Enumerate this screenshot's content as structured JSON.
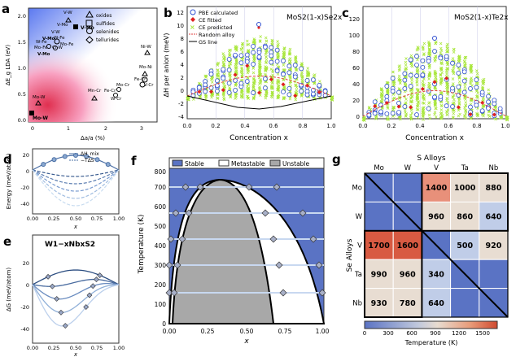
{
  "panel_letters": [
    "a",
    "b",
    "c",
    "d",
    "e",
    "f",
    "g"
  ],
  "a": {
    "xlabel": "Δa/a (%)",
    "ylabel": "ΔE_g LDA (eV)",
    "xticks": [
      "0",
      "1",
      "2",
      "3"
    ],
    "yticks": [
      "0.0",
      "0.5",
      "1.0",
      "1.5",
      "2.0"
    ],
    "legend": [
      "oxides",
      "sulfides",
      "selenides",
      "tellurides"
    ],
    "highlight_text": "Mo-W",
    "labels": [
      "V-W",
      "V-Mo",
      "V-W",
      "W-Fe",
      "V-Mo",
      "Mo-Fe",
      "Mo-Fe",
      "Cr-W",
      "V-Mo",
      "W-Fe",
      "Ni-W",
      "Mo-Ni",
      "V-Cr",
      "Fe-Cr",
      "Mo-Cr",
      "Mn-Cr",
      "Fe-Cr",
      "W-Cr",
      "Mo-W",
      "Mo-W"
    ]
  },
  "b": {
    "title": "MoS2(1-x)Se2x",
    "xlabel": "Concentration x",
    "ylabel": "ΔH per anion (meV)",
    "xticks": [
      "0.0",
      "0.2",
      "0.4",
      "0.6",
      "0.8",
      "1.0"
    ],
    "yticks": [
      "-4",
      "-2",
      "0",
      "2",
      "4",
      "6",
      "8",
      "10",
      "12",
      "14"
    ],
    "legend": [
      "PBE calculated",
      "CE fitted",
      "CE predicted",
      "Random alloy",
      "GS line"
    ]
  },
  "c": {
    "title": "MoS2(1-x)Te2x",
    "xticks": [
      "0.0",
      "0.2",
      "0.4",
      "0.6",
      "0.8",
      "1.0"
    ],
    "yticks": [
      "0",
      "20",
      "40",
      "60",
      "80",
      "100",
      "120"
    ]
  },
  "d": {
    "ylabel": "Energy (meV/atom)",
    "xlabel": "x",
    "xticks": [
      "0.00",
      "0.25",
      "0.50",
      "0.75",
      "1.00"
    ],
    "yticks": [
      "-40",
      "-20",
      "0",
      "20"
    ],
    "legend": [
      "ΔH_mix",
      "−TΔS"
    ]
  },
  "e": {
    "title": "W1−xNbxS2",
    "ylabel": "ΔG (meV/atom)",
    "xlabel": "x",
    "xticks": [
      "0.00",
      "0.25",
      "0.50",
      "0.75",
      "1.00"
    ],
    "yticks": [
      "-40",
      "-20",
      "0",
      "20"
    ]
  },
  "f": {
    "legend": [
      "Stable",
      "Metastable",
      "Unstable"
    ],
    "xlabel": "x",
    "ylabel": "Temperature (K)",
    "xticks": [
      "0.00",
      "0.25",
      "0.50",
      "0.75",
      "1.00"
    ],
    "yticks": [
      "0",
      "100",
      "200",
      "300",
      "400",
      "500",
      "600",
      "700",
      "800"
    ]
  },
  "g": {
    "top_label": "S Alloys",
    "side_label": "Se Alloys",
    "elements": [
      "Mo",
      "W",
      "V",
      "Ta",
      "Nb"
    ],
    "matrix": [
      [
        "",
        "",
        "1400",
        "1000",
        "880"
      ],
      [
        "",
        "",
        "960",
        "860",
        "640"
      ],
      [
        "1700",
        "1600",
        "",
        "500",
        "920"
      ],
      [
        "990",
        "960",
        "340",
        "",
        ""
      ],
      [
        "930",
        "780",
        "640",
        "",
        ""
      ]
    ],
    "colorbar_label": "Temperature (K)",
    "colorbar_ticks": [
      "0",
      "300",
      "600",
      "900",
      "1200",
      "1500"
    ]
  },
  "colors": {
    "stable_blue": "#5a73c4",
    "unstable_gray": "#a8a8a8",
    "ce_predicted": "#a8e63a",
    "pbe_circle": "#3050d0",
    "ce_fitted": "#e02020",
    "random_alloy": "#e04040"
  }
}
